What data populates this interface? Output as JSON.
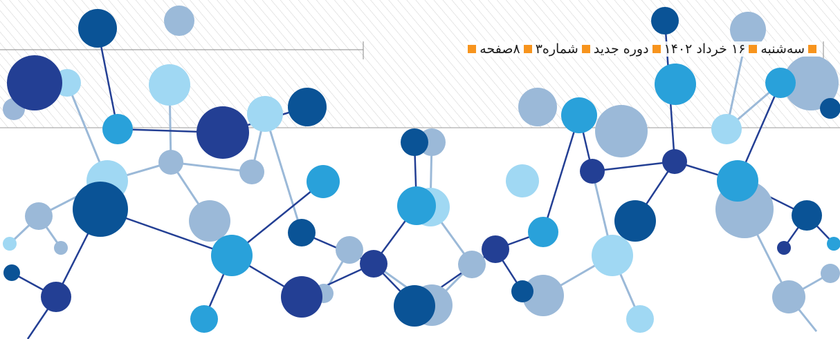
{
  "header": {
    "items": [
      "سه‌شنبه",
      "۱۶ خرداد ۱۴۰۲",
      "دوره جدید",
      "شماره۳",
      "۸صفحه"
    ]
  }
}
